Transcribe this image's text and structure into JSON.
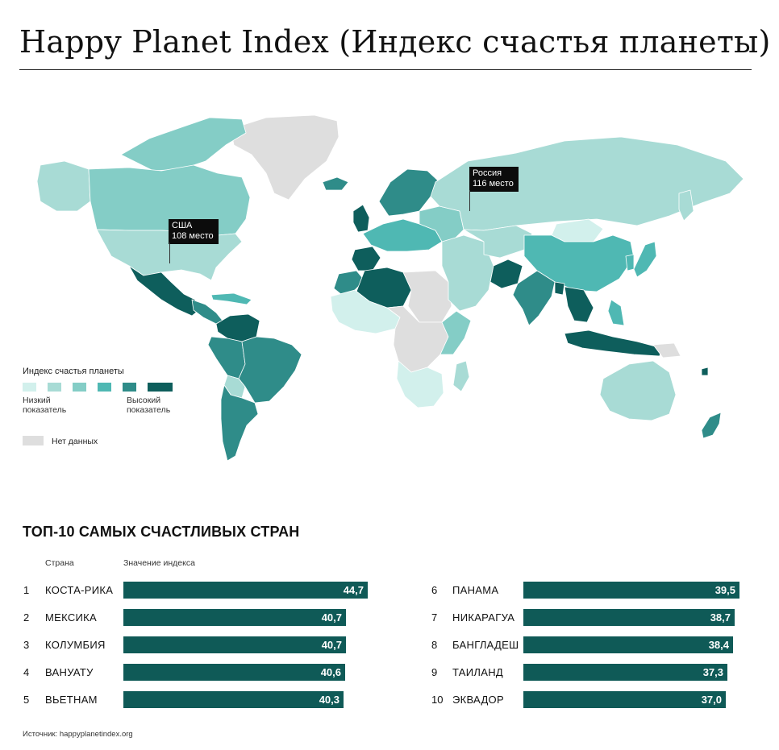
{
  "title": "Happy Planet Index (Индекс счастья планеты)",
  "map": {
    "colors": {
      "c1": "#d2f0ec",
      "c2": "#a8dbd5",
      "c3": "#84cdc6",
      "c4": "#4fb8b3",
      "c5": "#2f8c89",
      "c6": "#0e5e5c",
      "nodata": "#dedede",
      "border": "#ffffff"
    },
    "callouts": {
      "usa_line1": "США",
      "usa_line2": "108 место",
      "russia_line1": "Россия",
      "russia_line2": "116 место"
    }
  },
  "legend": {
    "title": "Индекс счастья планеты",
    "low": "Низкий показатель",
    "high": "Высокий показатель",
    "nodata": "Нет данных",
    "scale": [
      "#d2f0ec",
      "#a8dbd5",
      "#84cdc6",
      "#4fb8b3",
      "#2f8c89",
      "#0e5e5c"
    ]
  },
  "top10": {
    "title": "ТОП-10 САМЫХ СЧАСТЛИВЫХ СТРАН",
    "col_country": "Страна",
    "col_value": "Значение индекса",
    "bar_color": "#0f5a57",
    "scale_max": 44.7,
    "left": [
      {
        "rank": "1",
        "name": "КОСТА-РИКА",
        "value": 44.7,
        "label": "44,7"
      },
      {
        "rank": "2",
        "name": "МЕКСИКА",
        "value": 40.7,
        "label": "40,7"
      },
      {
        "rank": "3",
        "name": "КОЛУМБИЯ",
        "value": 40.7,
        "label": "40,7"
      },
      {
        "rank": "4",
        "name": "ВАНУАТУ",
        "value": 40.6,
        "label": "40,6"
      },
      {
        "rank": "5",
        "name": "ВЬЕТНАМ",
        "value": 40.3,
        "label": "40,3"
      }
    ],
    "right": [
      {
        "rank": "6",
        "name": "ПАНАМА",
        "value": 39.5,
        "label": "39,5"
      },
      {
        "rank": "7",
        "name": "НИКАРАГУА",
        "value": 38.7,
        "label": "38,7"
      },
      {
        "rank": "8",
        "name": "БАНГЛАДЕШ",
        "value": 38.4,
        "label": "38,4"
      },
      {
        "rank": "9",
        "name": "ТАИЛАНД",
        "value": 37.3,
        "label": "37,3"
      },
      {
        "rank": "10",
        "name": "ЭКВАДОР",
        "value": 37.0,
        "label": "37,0"
      }
    ]
  },
  "source": "Источник: happyplanetindex.org"
}
